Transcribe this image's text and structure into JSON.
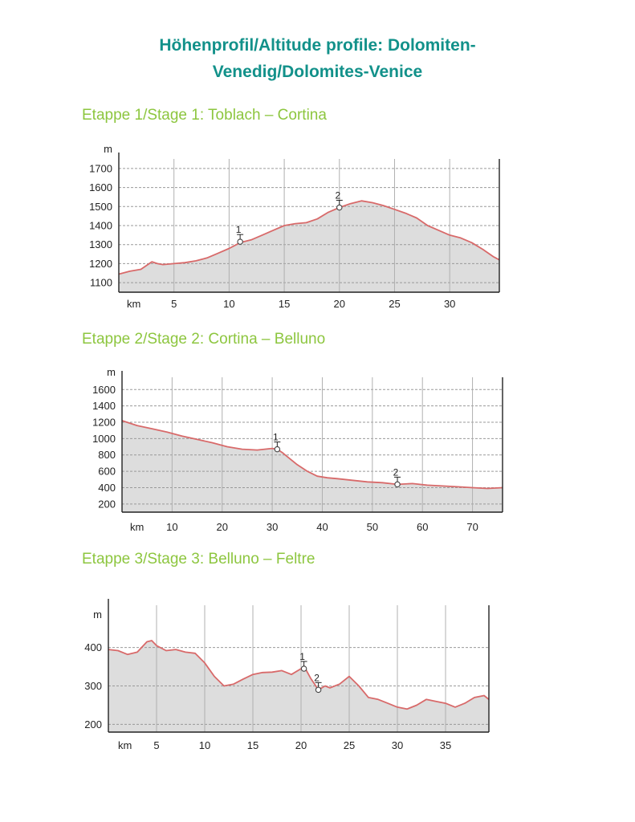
{
  "title": {
    "line1": "Höhenprofil/Altitude profile: Dolomiten-",
    "line2": "Venedig/Dolomites-Venice"
  },
  "colors": {
    "title": "#12918a",
    "heading": "#8dc63f",
    "profile_line": "#d86a6a",
    "profile_fill": "#dddddd"
  },
  "stages": [
    {
      "heading": "Etappe 1/Stage 1: Toblach – Cortina",
      "chart_data": {
        "type": "area",
        "ylabel": "m",
        "xlabel": "km",
        "xlim": [
          0,
          34.5
        ],
        "ylim": [
          1050,
          1750
        ],
        "grid": true,
        "xticks": [
          5,
          10,
          15,
          20,
          25,
          30
        ],
        "yticks": [
          1100,
          1200,
          1300,
          1400,
          1500,
          1600,
          1700
        ],
        "points": [
          [
            0,
            1145
          ],
          [
            1,
            1160
          ],
          [
            2,
            1170
          ],
          [
            3,
            1210
          ],
          [
            3.5,
            1200
          ],
          [
            4,
            1195
          ],
          [
            5,
            1200
          ],
          [
            6,
            1205
          ],
          [
            7,
            1215
          ],
          [
            8,
            1230
          ],
          [
            9,
            1255
          ],
          [
            10,
            1280
          ],
          [
            11,
            1310
          ],
          [
            12,
            1325
          ],
          [
            13,
            1350
          ],
          [
            14,
            1375
          ],
          [
            15,
            1400
          ],
          [
            16,
            1410
          ],
          [
            17,
            1415
          ],
          [
            18,
            1435
          ],
          [
            19,
            1470
          ],
          [
            20,
            1495
          ],
          [
            21,
            1515
          ],
          [
            22,
            1530
          ],
          [
            23,
            1520
          ],
          [
            24,
            1505
          ],
          [
            25,
            1485
          ],
          [
            26,
            1465
          ],
          [
            27,
            1440
          ],
          [
            28,
            1400
          ],
          [
            29,
            1375
          ],
          [
            30,
            1350
          ],
          [
            31,
            1335
          ],
          [
            32,
            1310
          ],
          [
            33,
            1275
          ],
          [
            34,
            1235
          ],
          [
            34.5,
            1220
          ]
        ],
        "waypoints": [
          {
            "label": "1",
            "x": 11,
            "y": 1315
          },
          {
            "label": "2",
            "x": 20,
            "y": 1495
          }
        ]
      }
    },
    {
      "heading": "Etappe 2/Stage 2: Cortina – Belluno",
      "chart_data": {
        "type": "area",
        "ylabel": "m",
        "xlabel": "km",
        "xlim": [
          0,
          76
        ],
        "ylim": [
          100,
          1750
        ],
        "grid": true,
        "xticks": [
          10,
          20,
          30,
          40,
          50,
          60,
          70
        ],
        "yticks": [
          200,
          400,
          600,
          800,
          1000,
          1200,
          1400,
          1600
        ],
        "points": [
          [
            0,
            1220
          ],
          [
            3,
            1160
          ],
          [
            6,
            1120
          ],
          [
            9,
            1080
          ],
          [
            12,
            1030
          ],
          [
            15,
            990
          ],
          [
            18,
            950
          ],
          [
            21,
            900
          ],
          [
            24,
            870
          ],
          [
            27,
            860
          ],
          [
            30,
            880
          ],
          [
            31,
            870
          ],
          [
            32,
            830
          ],
          [
            33,
            780
          ],
          [
            35,
            680
          ],
          [
            37,
            600
          ],
          [
            39,
            540
          ],
          [
            41,
            520
          ],
          [
            43,
            510
          ],
          [
            46,
            490
          ],
          [
            49,
            470
          ],
          [
            52,
            460
          ],
          [
            55,
            440
          ],
          [
            58,
            450
          ],
          [
            61,
            430
          ],
          [
            64,
            420
          ],
          [
            67,
            410
          ],
          [
            70,
            400
          ],
          [
            73,
            390
          ],
          [
            76,
            400
          ]
        ],
        "waypoints": [
          {
            "label": "1",
            "x": 31,
            "y": 870
          },
          {
            "label": "2",
            "x": 55,
            "y": 440
          }
        ]
      }
    },
    {
      "heading": "Etappe 3/Stage 3: Belluno – Feltre",
      "chart_data": {
        "type": "area",
        "ylabel": "m",
        "xlabel": "km",
        "xlim": [
          0,
          39.5
        ],
        "ylim": [
          180,
          510
        ],
        "grid": true,
        "xticks": [
          5,
          10,
          15,
          20,
          25,
          30,
          35
        ],
        "yticks": [
          200,
          300,
          400
        ],
        "points": [
          [
            0,
            395
          ],
          [
            1,
            392
          ],
          [
            2,
            382
          ],
          [
            3,
            388
          ],
          [
            4,
            415
          ],
          [
            4.5,
            418
          ],
          [
            5,
            405
          ],
          [
            6,
            392
          ],
          [
            7,
            395
          ],
          [
            8,
            388
          ],
          [
            9,
            385
          ],
          [
            10,
            360
          ],
          [
            11,
            325
          ],
          [
            12,
            300
          ],
          [
            13,
            305
          ],
          [
            14,
            318
          ],
          [
            15,
            330
          ],
          [
            16,
            335
          ],
          [
            17,
            336
          ],
          [
            18,
            340
          ],
          [
            19,
            330
          ],
          [
            20,
            345
          ],
          [
            20.3,
            352
          ],
          [
            21,
            320
          ],
          [
            21.8,
            290
          ],
          [
            22.5,
            300
          ],
          [
            23,
            295
          ],
          [
            24,
            305
          ],
          [
            25,
            325
          ],
          [
            26,
            300
          ],
          [
            27,
            270
          ],
          [
            28,
            265
          ],
          [
            29,
            255
          ],
          [
            30,
            245
          ],
          [
            31,
            240
          ],
          [
            32,
            250
          ],
          [
            33,
            265
          ],
          [
            34,
            260
          ],
          [
            35,
            255
          ],
          [
            36,
            245
          ],
          [
            37,
            255
          ],
          [
            38,
            270
          ],
          [
            39,
            275
          ],
          [
            39.5,
            265
          ]
        ],
        "waypoints": [
          {
            "label": "1",
            "x": 20.3,
            "y": 345
          },
          {
            "label": "2",
            "x": 21.8,
            "y": 290
          }
        ]
      }
    }
  ]
}
